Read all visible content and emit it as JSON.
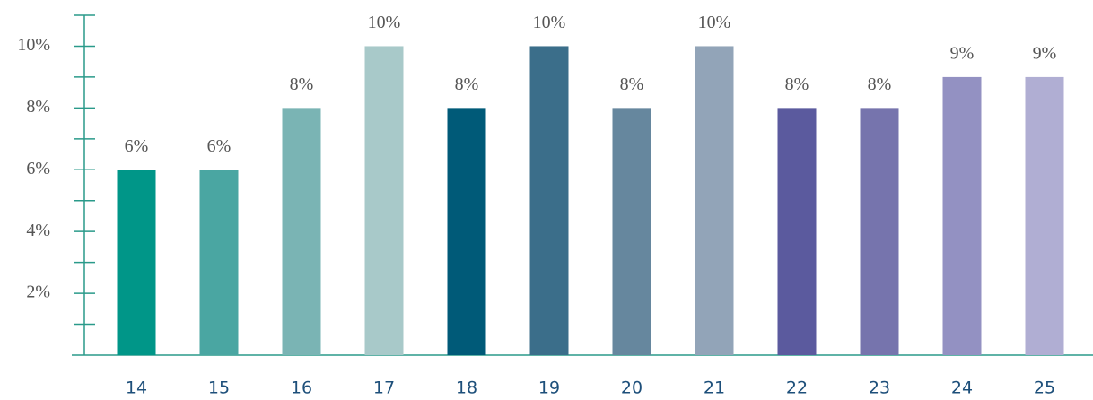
{
  "chart_data": {
    "type": "bar",
    "categories": [
      "14",
      "15",
      "16",
      "17",
      "18",
      "19",
      "20",
      "21",
      "22",
      "23",
      "24",
      "25"
    ],
    "values": [
      6,
      6,
      8,
      10,
      8,
      10,
      8,
      10,
      8,
      8,
      9,
      9
    ],
    "value_labels": [
      "6%",
      "6%",
      "8%",
      "10%",
      "8%",
      "10%",
      "8%",
      "10%",
      "8%",
      "8%",
      "9%",
      "9%"
    ],
    "colors": [
      "#009688",
      "#4aa6a2",
      "#7ab4b4",
      "#a8c9c9",
      "#005a78",
      "#3b6e8a",
      "#66879e",
      "#92a4b8",
      "#5b5a9e",
      "#7674ad",
      "#9391c2",
      "#b0aed3"
    ],
    "ylim": [
      0,
      11
    ],
    "yticks": [
      {
        "value": 2,
        "label": "2%"
      },
      {
        "value": 4,
        "label": "4%"
      },
      {
        "value": 6,
        "label": "6%"
      },
      {
        "value": 8,
        "label": "8%"
      },
      {
        "value": 10,
        "label": "10%"
      }
    ],
    "yminor_ticks": [
      1,
      3,
      5,
      7,
      9,
      11
    ]
  }
}
